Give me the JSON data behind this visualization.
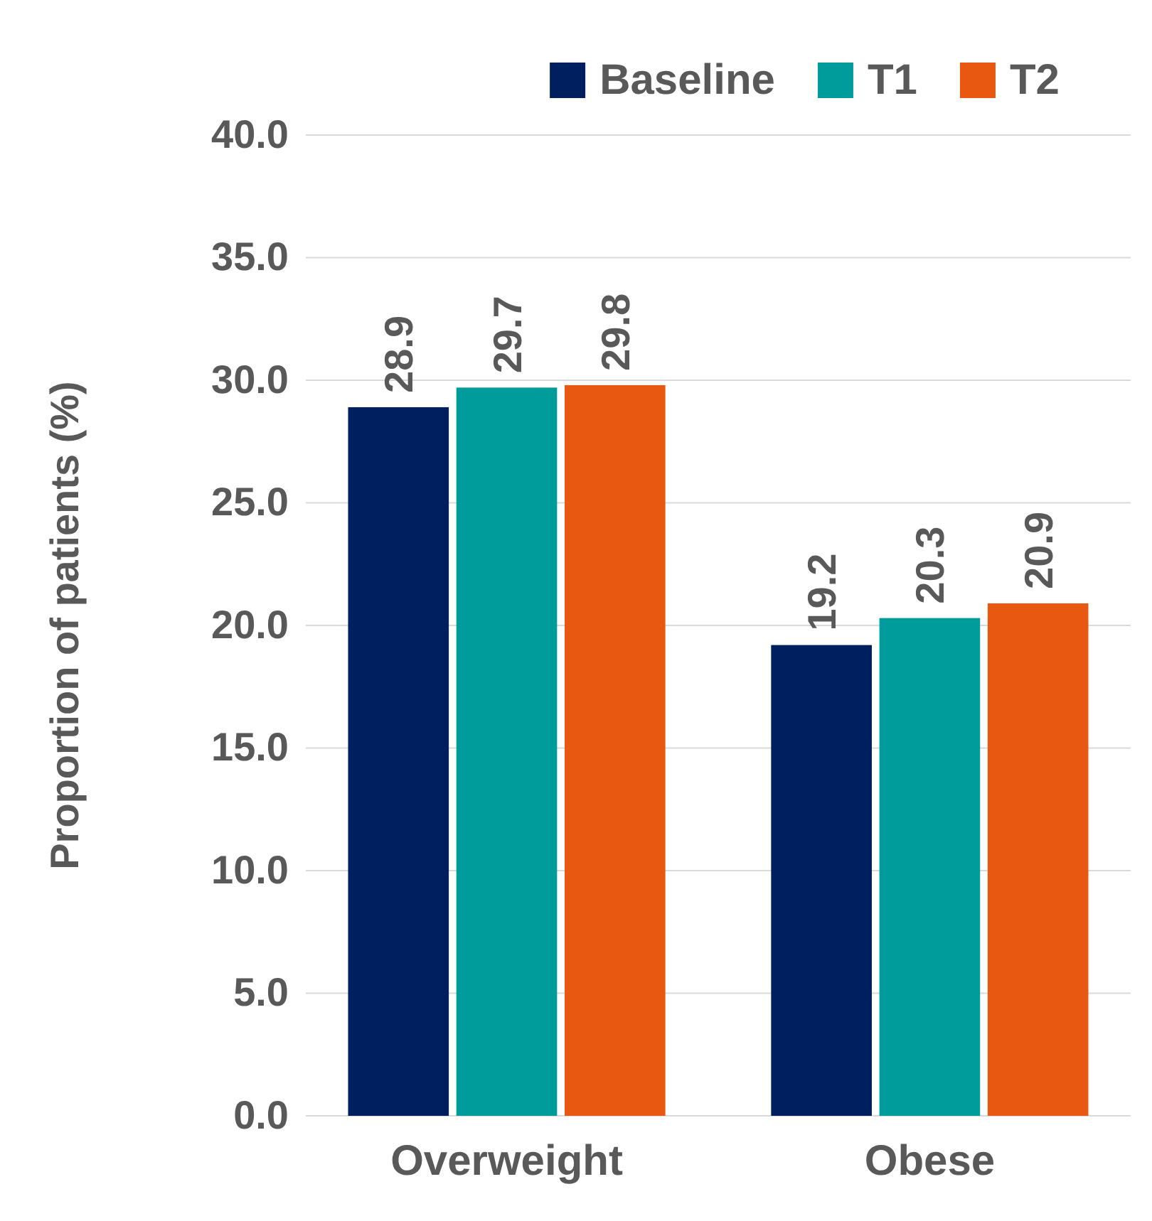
{
  "chart_data": {
    "type": "bar",
    "ylabel": "Proportion of patients (%)",
    "categories": [
      "Overweight",
      "Obese"
    ],
    "series": [
      {
        "name": "Baseline",
        "color": "#001f5f",
        "values": [
          28.9,
          19.2
        ]
      },
      {
        "name": "T1",
        "color": "#009b9b",
        "values": [
          29.7,
          20.3
        ]
      },
      {
        "name": "T2",
        "color": "#e85810",
        "values": [
          29.8,
          20.9
        ]
      }
    ],
    "ylim": [
      0,
      40
    ],
    "yticks": [
      {
        "value": 0,
        "label": "0.0"
      },
      {
        "value": 5,
        "label": "5.0"
      },
      {
        "value": 10,
        "label": "10.0"
      },
      {
        "value": 15,
        "label": "15.0"
      },
      {
        "value": 20,
        "label": "20.0"
      },
      {
        "value": 25,
        "label": "25.0"
      },
      {
        "value": 30,
        "label": "30.0"
      },
      {
        "value": 35,
        "label": "35.0"
      },
      {
        "value": 40,
        "label": "40.0"
      }
    ],
    "grid": "y",
    "legend": "top right",
    "data_labels": true
  }
}
